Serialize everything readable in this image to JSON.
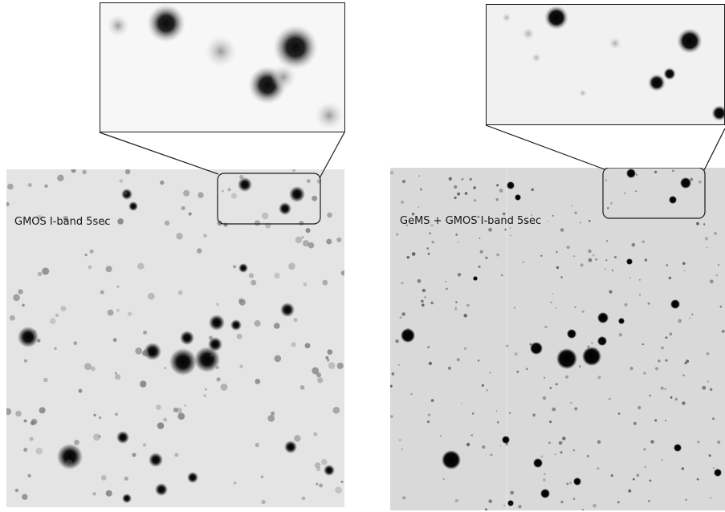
{
  "panels": {
    "left": {
      "label": "GMOS I-band 5sec",
      "background": "#e4e4e4"
    },
    "right": {
      "label": "GeMS + GMOS I-band 5sec",
      "background": "#d9d9d9"
    }
  },
  "colors": {
    "star": "#050505",
    "frame": "#1a1a1a"
  }
}
